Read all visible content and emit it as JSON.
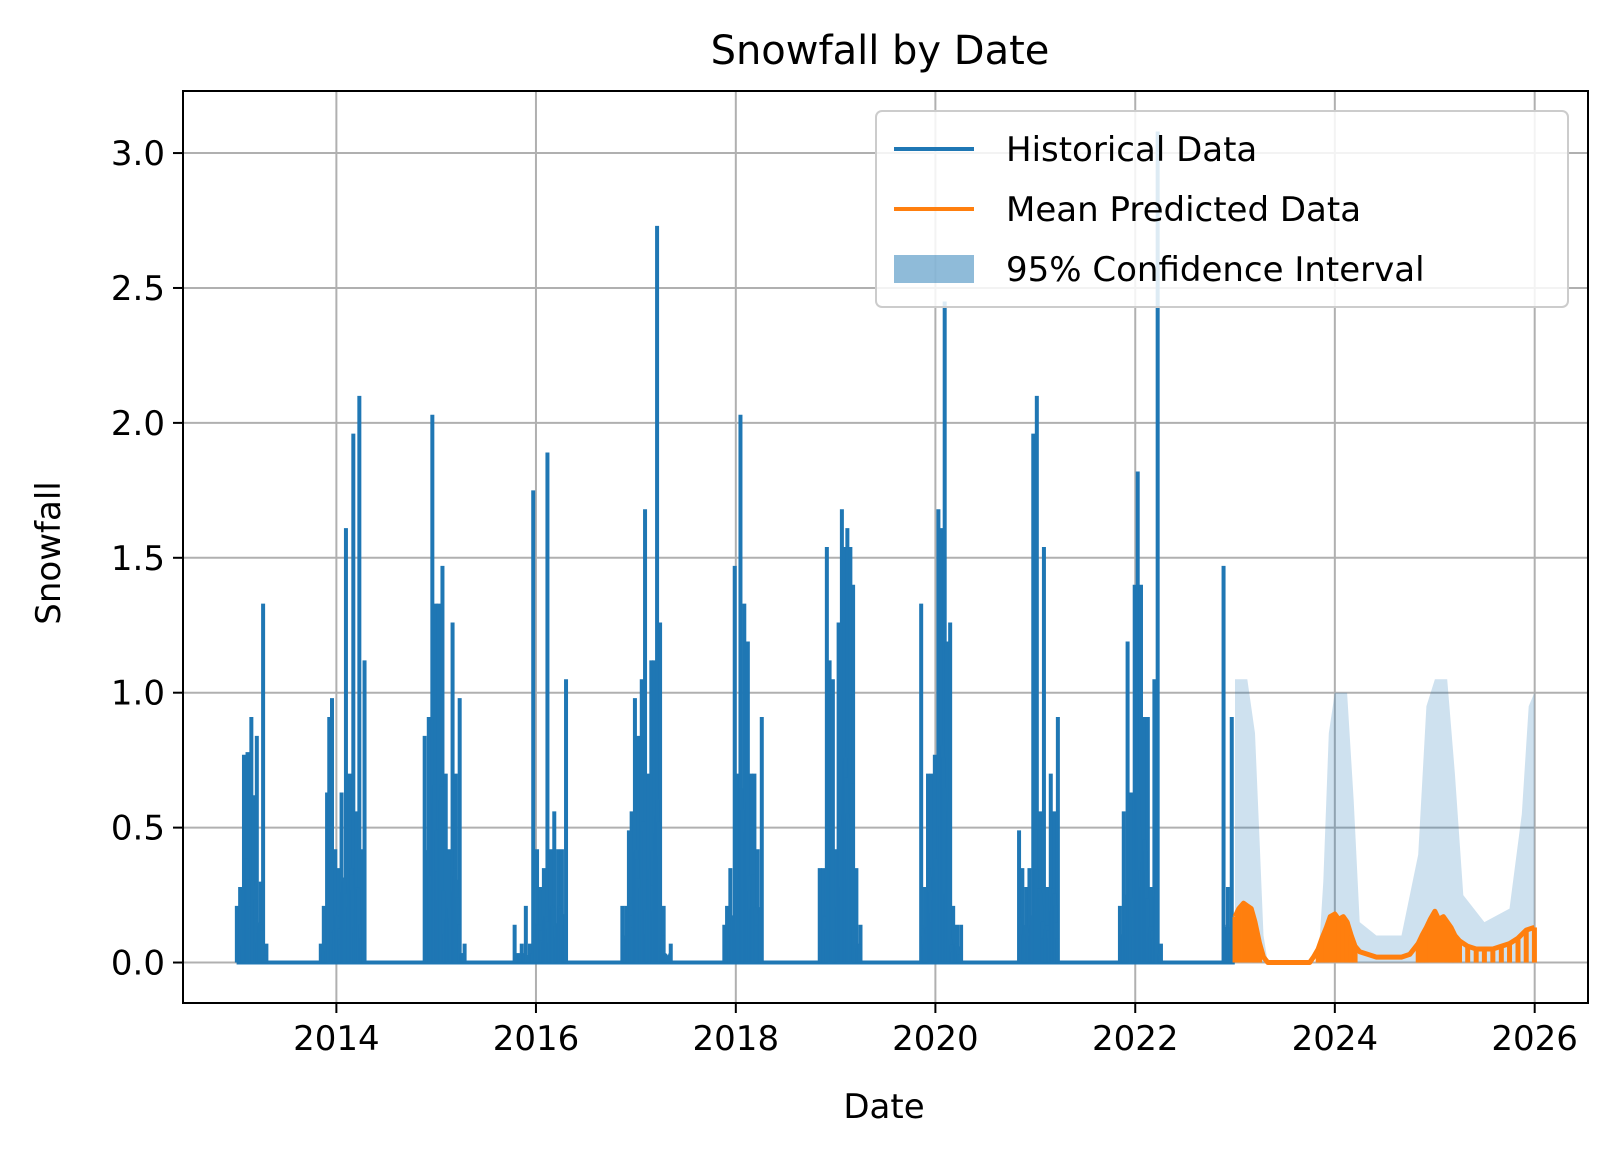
{
  "chart_data": {
    "type": "line",
    "title": "Snowfall by Date",
    "xlabel": "Date",
    "ylabel": "Snowfall",
    "xlim": [
      "2012-06-19",
      "2026-07-15"
    ],
    "ylim": [
      -0.15,
      3.23
    ],
    "x_ticks": [
      "2014",
      "2016",
      "2018",
      "2020",
      "2022",
      "2024",
      "2026"
    ],
    "y_ticks": [
      "0.0",
      "0.5",
      "1.0",
      "1.5",
      "2.0",
      "2.5",
      "3.0"
    ],
    "grid": true,
    "legend_position": "upper right",
    "colors": {
      "historical": "#1f77b4",
      "predicted": "#ff7f0e",
      "interval": "#1f77b4"
    },
    "series": [
      {
        "name": "Historical Data",
        "style": "line",
        "range": [
          "2013-01-01",
          "2022-12-31"
        ],
        "baseline": 0,
        "spikes": [
          [
            "2013-01-02",
            0.21
          ],
          [
            "2013-01-14",
            0.28
          ],
          [
            "2013-01-28",
            0.77
          ],
          [
            "2013-02-10",
            0.78
          ],
          [
            "2013-02-24",
            0.91
          ],
          [
            "2013-03-05",
            0.62
          ],
          [
            "2013-03-16",
            0.84
          ],
          [
            "2013-03-30",
            0.3
          ],
          [
            "2013-04-08",
            1.33
          ],
          [
            "2013-04-20",
            0.07
          ],
          [
            "2013-11-05",
            0.07
          ],
          [
            "2013-11-16",
            0.21
          ],
          [
            "2013-11-28",
            0.63
          ],
          [
            "2013-12-06",
            0.91
          ],
          [
            "2013-12-16",
            0.98
          ],
          [
            "2013-12-28",
            0.42
          ],
          [
            "2014-01-08",
            0.35
          ],
          [
            "2014-01-20",
            0.63
          ],
          [
            "2014-02-05",
            1.61
          ],
          [
            "2014-02-18",
            0.7
          ],
          [
            "2014-03-04",
            1.96
          ],
          [
            "2014-03-14",
            0.56
          ],
          [
            "2014-03-26",
            2.1
          ],
          [
            "2014-04-06",
            0.42
          ],
          [
            "2014-04-14",
            1.12
          ],
          [
            "2014-11-20",
            0.84
          ],
          [
            "2014-12-05",
            0.91
          ],
          [
            "2014-12-18",
            2.03
          ],
          [
            "2014-12-30",
            1.33
          ],
          [
            "2015-01-10",
            1.33
          ],
          [
            "2015-01-24",
            1.47
          ],
          [
            "2015-02-05",
            0.7
          ],
          [
            "2015-02-18",
            0.42
          ],
          [
            "2015-03-02",
            1.26
          ],
          [
            "2015-03-14",
            0.7
          ],
          [
            "2015-03-28",
            0.98
          ],
          [
            "2015-04-15",
            0.07
          ],
          [
            "2015-10-15",
            0.14
          ],
          [
            "2015-11-10",
            0.07
          ],
          [
            "2015-11-25",
            0.21
          ],
          [
            "2015-12-10",
            0.07
          ],
          [
            "2015-12-22",
            1.75
          ],
          [
            "2016-01-05",
            0.42
          ],
          [
            "2016-01-18",
            0.28
          ],
          [
            "2016-01-30",
            0.35
          ],
          [
            "2016-02-12",
            1.89
          ],
          [
            "2016-02-25",
            0.42
          ],
          [
            "2016-03-08",
            0.56
          ],
          [
            "2016-03-22",
            0.42
          ],
          [
            "2016-04-05",
            0.42
          ],
          [
            "2016-04-20",
            1.05
          ],
          [
            "2016-11-12",
            0.21
          ],
          [
            "2016-11-26",
            0.21
          ],
          [
            "2016-12-06",
            0.49
          ],
          [
            "2016-12-16",
            0.56
          ],
          [
            "2016-12-28",
            0.98
          ],
          [
            "2017-01-10",
            0.84
          ],
          [
            "2017-01-22",
            1.05
          ],
          [
            "2017-02-03",
            1.68
          ],
          [
            "2017-02-14",
            0.7
          ],
          [
            "2017-02-26",
            1.12
          ],
          [
            "2017-03-08",
            1.12
          ],
          [
            "2017-03-19",
            2.73
          ],
          [
            "2017-03-30",
            1.26
          ],
          [
            "2017-04-12",
            0.21
          ],
          [
            "2017-05-08",
            0.07
          ],
          [
            "2017-11-20",
            0.14
          ],
          [
            "2017-11-30",
            0.21
          ],
          [
            "2017-12-12",
            0.35
          ],
          [
            "2017-12-28",
            1.47
          ],
          [
            "2018-01-08",
            0.7
          ],
          [
            "2018-01-18",
            2.03
          ],
          [
            "2018-02-01",
            1.33
          ],
          [
            "2018-02-14",
            1.19
          ],
          [
            "2018-02-26",
            0.7
          ],
          [
            "2018-03-10",
            0.7
          ],
          [
            "2018-03-22",
            0.42
          ],
          [
            "2018-04-06",
            0.91
          ],
          [
            "2018-11-04",
            0.35
          ],
          [
            "2018-11-16",
            0.35
          ],
          [
            "2018-11-30",
            1.54
          ],
          [
            "2018-12-10",
            1.12
          ],
          [
            "2018-12-22",
            1.05
          ],
          [
            "2019-01-02",
            0.42
          ],
          [
            "2019-01-12",
            1.26
          ],
          [
            "2019-01-24",
            1.68
          ],
          [
            "2019-02-03",
            1.54
          ],
          [
            "2019-02-13",
            1.61
          ],
          [
            "2019-02-24",
            1.54
          ],
          [
            "2019-03-06",
            1.4
          ],
          [
            "2019-03-18",
            0.35
          ],
          [
            "2019-04-02",
            0.14
          ],
          [
            "2019-11-10",
            1.33
          ],
          [
            "2019-11-24",
            0.28
          ],
          [
            "2019-12-05",
            0.7
          ],
          [
            "2019-12-18",
            0.7
          ],
          [
            "2019-12-30",
            0.77
          ],
          [
            "2020-01-12",
            1.68
          ],
          [
            "2020-01-24",
            1.61
          ],
          [
            "2020-02-04",
            2.45
          ],
          [
            "2020-02-12",
            1.19
          ],
          [
            "2020-02-24",
            1.26
          ],
          [
            "2020-03-06",
            0.21
          ],
          [
            "2020-03-20",
            0.14
          ],
          [
            "2020-04-04",
            0.14
          ],
          [
            "2020-11-02",
            0.49
          ],
          [
            "2020-11-14",
            0.35
          ],
          [
            "2020-11-28",
            0.28
          ],
          [
            "2020-12-10",
            0.35
          ],
          [
            "2020-12-24",
            1.96
          ],
          [
            "2021-01-06",
            2.1
          ],
          [
            "2021-01-18",
            0.56
          ],
          [
            "2021-02-01",
            1.54
          ],
          [
            "2021-02-14",
            0.28
          ],
          [
            "2021-02-26",
            0.7
          ],
          [
            "2021-03-10",
            0.56
          ],
          [
            "2021-03-24",
            0.91
          ],
          [
            "2021-11-06",
            0.21
          ],
          [
            "2021-11-20",
            0.56
          ],
          [
            "2021-12-04",
            1.19
          ],
          [
            "2021-12-18",
            0.63
          ],
          [
            "2021-12-30",
            1.4
          ],
          [
            "2022-01-10",
            1.82
          ],
          [
            "2022-01-22",
            1.4
          ],
          [
            "2022-02-04",
            0.91
          ],
          [
            "2022-02-16",
            0.91
          ],
          [
            "2022-02-28",
            0.28
          ],
          [
            "2022-03-12",
            1.05
          ],
          [
            "2022-03-24",
            3.08
          ],
          [
            "2022-04-05",
            0.07
          ],
          [
            "2022-11-20",
            1.47
          ],
          [
            "2022-12-06",
            0.28
          ],
          [
            "2022-12-20",
            0.91
          ]
        ]
      },
      {
        "name": "Mean Predicted Data",
        "style": "line",
        "range": [
          "2023-01-01",
          "2025-12-31"
        ],
        "points": [
          [
            "2023-01-01",
            0.17
          ],
          [
            "2023-01-15",
            0.2
          ],
          [
            "2023-02-01",
            0.22
          ],
          [
            "2023-02-15",
            0.21
          ],
          [
            "2023-03-01",
            0.2
          ],
          [
            "2023-03-15",
            0.15
          ],
          [
            "2023-04-01",
            0.07
          ],
          [
            "2023-04-15",
            0.02
          ],
          [
            "2023-05-01",
            0.0
          ],
          [
            "2023-10-01",
            0.0
          ],
          [
            "2023-10-15",
            0.02
          ],
          [
            "2023-11-01",
            0.05
          ],
          [
            "2023-11-15",
            0.09
          ],
          [
            "2023-12-01",
            0.13
          ],
          [
            "2023-12-15",
            0.17
          ],
          [
            "2024-01-01",
            0.18
          ],
          [
            "2024-01-15",
            0.16
          ],
          [
            "2024-02-01",
            0.17
          ],
          [
            "2024-02-15",
            0.15
          ],
          [
            "2024-03-01",
            0.1
          ],
          [
            "2024-03-15",
            0.06
          ],
          [
            "2024-04-01",
            0.04
          ],
          [
            "2024-05-01",
            0.03
          ],
          [
            "2024-06-01",
            0.02
          ],
          [
            "2024-07-01",
            0.02
          ],
          [
            "2024-08-01",
            0.02
          ],
          [
            "2024-09-01",
            0.02
          ],
          [
            "2024-10-01",
            0.03
          ],
          [
            "2024-11-01",
            0.07
          ],
          [
            "2024-11-15",
            0.1
          ],
          [
            "2024-12-01",
            0.13
          ],
          [
            "2024-12-15",
            0.16
          ],
          [
            "2025-01-01",
            0.19
          ],
          [
            "2025-01-15",
            0.16
          ],
          [
            "2025-02-01",
            0.17
          ],
          [
            "2025-02-15",
            0.15
          ],
          [
            "2025-03-01",
            0.13
          ],
          [
            "2025-03-15",
            0.1
          ],
          [
            "2025-04-01",
            0.08
          ],
          [
            "2025-05-01",
            0.06
          ],
          [
            "2025-06-01",
            0.05
          ],
          [
            "2025-07-01",
            0.05
          ],
          [
            "2025-08-01",
            0.05
          ],
          [
            "2025-09-01",
            0.06
          ],
          [
            "2025-10-01",
            0.07
          ],
          [
            "2025-11-01",
            0.09
          ],
          [
            "2025-12-01",
            0.12
          ],
          [
            "2025-12-31",
            0.13
          ]
        ]
      },
      {
        "name": "95% Confidence Interval",
        "style": "band",
        "range": [
          "2023-01-01",
          "2025-12-31"
        ],
        "lower": 0,
        "upper": [
          [
            "2023-01-01",
            1.05
          ],
          [
            "2023-02-15",
            1.05
          ],
          [
            "2023-03-15",
            0.85
          ],
          [
            "2023-04-01",
            0.45
          ],
          [
            "2023-04-15",
            0.1
          ],
          [
            "2023-05-01",
            0.0
          ],
          [
            "2023-11-01",
            0.0
          ],
          [
            "2023-11-20",
            0.3
          ],
          [
            "2023-12-10",
            0.85
          ],
          [
            "2024-01-01",
            1.0
          ],
          [
            "2024-02-15",
            1.0
          ],
          [
            "2024-03-10",
            0.6
          ],
          [
            "2024-04-01",
            0.15
          ],
          [
            "2024-06-01",
            0.1
          ],
          [
            "2024-09-01",
            0.1
          ],
          [
            "2024-11-01",
            0.4
          ],
          [
            "2024-12-01",
            0.95
          ],
          [
            "2025-01-01",
            1.05
          ],
          [
            "2025-02-15",
            1.05
          ],
          [
            "2025-03-15",
            0.7
          ],
          [
            "2025-04-15",
            0.25
          ],
          [
            "2025-07-01",
            0.15
          ],
          [
            "2025-10-01",
            0.2
          ],
          [
            "2025-11-15",
            0.55
          ],
          [
            "2025-12-10",
            0.95
          ],
          [
            "2025-12-31",
            1.0
          ]
        ]
      }
    ]
  }
}
